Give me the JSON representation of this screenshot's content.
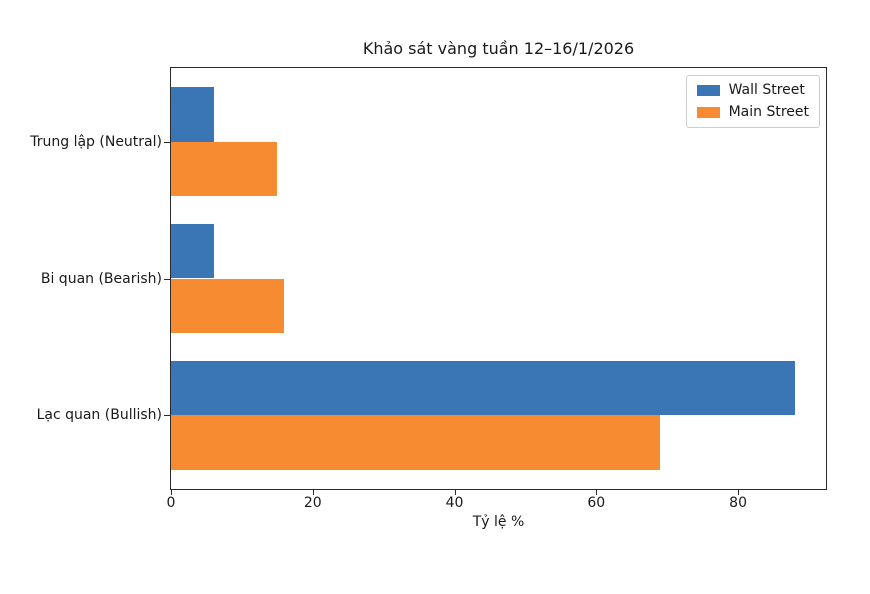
{
  "figure": {
    "background": "#ffffff",
    "text_color": "#1a1a1a",
    "spine_color": "#2a2a2a"
  },
  "chart_data": {
    "type": "bar",
    "orientation": "horizontal",
    "title": "Khảo sát vàng tuần 12–16/1/2026",
    "xlabel": "Tỷ lệ %",
    "ylabel": "",
    "categories": [
      "Trung lập (Neutral)",
      "Bi quan (Bearish)",
      "Lạc quan (Bullish)"
    ],
    "series": [
      {
        "name": "Wall Street",
        "color": "#3a76b5",
        "values": [
          6,
          6,
          88
        ]
      },
      {
        "name": "Main Street",
        "color": "#f78b31",
        "values": [
          15,
          16,
          69
        ]
      }
    ],
    "xticks": [
      0,
      20,
      40,
      60,
      80
    ],
    "xlim": [
      0,
      92.4
    ],
    "grid": false,
    "legend": {
      "position": "upper right",
      "entries": [
        "Wall Street",
        "Main Street"
      ]
    }
  }
}
